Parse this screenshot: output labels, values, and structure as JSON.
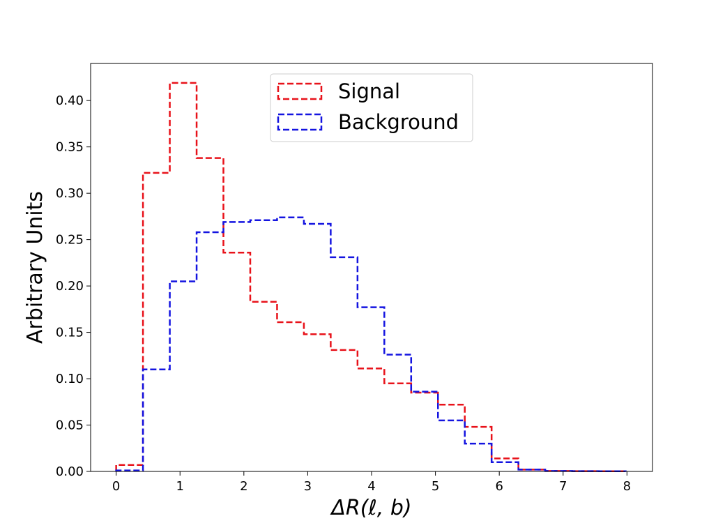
{
  "chart_data": {
    "type": "histogram-step",
    "xlabel": "ΔR(ℓ, b)",
    "ylabel": "Arbitrary Units",
    "xlim": [
      -0.4,
      8.4
    ],
    "ylim": [
      0,
      0.44
    ],
    "xticks": [
      0,
      1,
      2,
      3,
      4,
      5,
      6,
      7,
      8
    ],
    "xtick_labels": [
      "0",
      "1",
      "2",
      "3",
      "4",
      "5",
      "6",
      "7",
      "8"
    ],
    "yticks": [
      0.0,
      0.05,
      0.1,
      0.15,
      0.2,
      0.25,
      0.3,
      0.35,
      0.4
    ],
    "ytick_labels": [
      "0.00",
      "0.05",
      "0.10",
      "0.15",
      "0.20",
      "0.25",
      "0.30",
      "0.35",
      "0.40"
    ],
    "grid": false,
    "legend_position": "top-center",
    "bin_edges": [
      0.0,
      0.42,
      0.84,
      1.26,
      1.68,
      2.1,
      2.52,
      2.94,
      3.36,
      3.78,
      4.2,
      4.62,
      5.04,
      5.46,
      5.88,
      6.3,
      6.72,
      7.14,
      7.56,
      7.98
    ],
    "series": [
      {
        "name": "Signal",
        "color": "#e8121a",
        "values": [
          0.007,
          0.322,
          0.419,
          0.338,
          0.236,
          0.183,
          0.161,
          0.148,
          0.131,
          0.111,
          0.095,
          0.085,
          0.072,
          0.048,
          0.014,
          0.002,
          0.0005,
          0.0003,
          0.0002
        ]
      },
      {
        "name": "Background",
        "color": "#1414e0",
        "values": [
          0.001,
          0.11,
          0.205,
          0.258,
          0.269,
          0.271,
          0.274,
          0.267,
          0.231,
          0.177,
          0.126,
          0.086,
          0.055,
          0.03,
          0.01,
          0.002,
          0.0005,
          0.0003,
          0.0002
        ]
      }
    ]
  }
}
